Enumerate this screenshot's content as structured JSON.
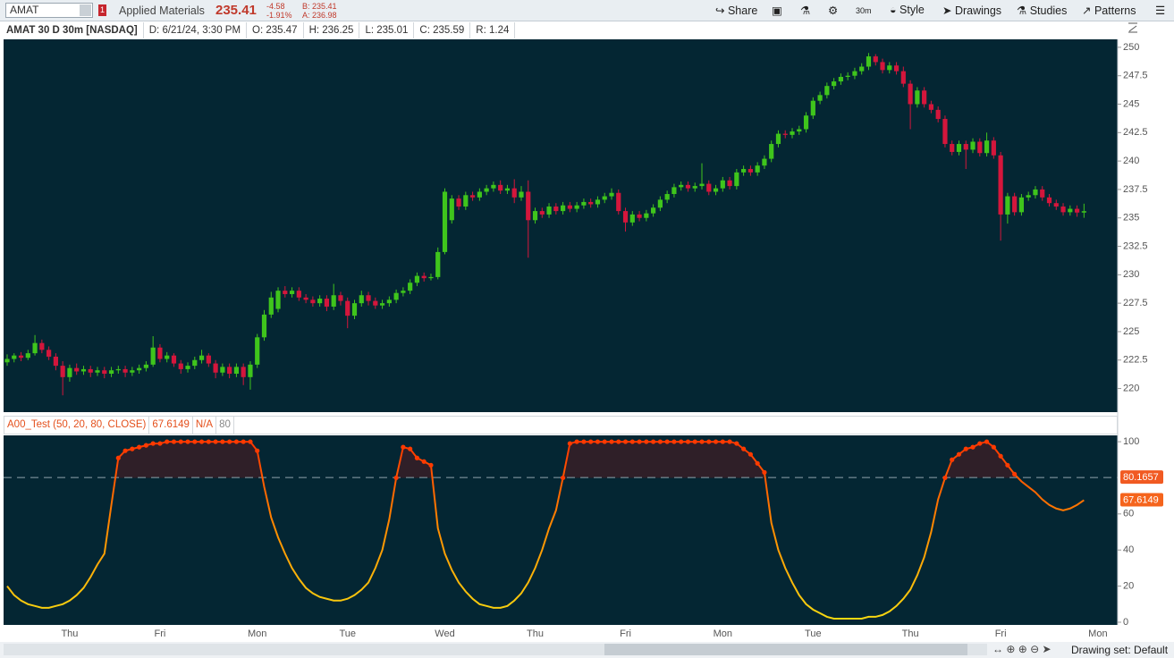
{
  "ui": {
    "symbol": "AMAT",
    "alert_count": "1",
    "company": "Applied Materials",
    "last": "235.41",
    "change": "-4.58",
    "change_pct": "-1.91%",
    "bid": "B: 235.41",
    "ask": "A: 236.98",
    "share": "Share",
    "timeframe": "30m",
    "style": "Style",
    "drawings": "Drawings",
    "studies": "Studies",
    "patterns": "Patterns",
    "info": [
      "AMAT 30 D 30m [NASDAQ]",
      "D: 6/21/24, 3:30 PM",
      "O: 235.47",
      "H: 236.25",
      "L: 235.01",
      "C: 235.59",
      "R: 1.24"
    ],
    "drawing_set": "Drawing set: Default"
  },
  "chart_data": [
    {
      "type": "candlestick",
      "colors": {
        "up": "#3fc51c",
        "down": "#d4163c"
      },
      "ylim": [
        218,
        250.7
      ],
      "yticks": [
        220,
        222.5,
        225,
        227.5,
        230,
        232.5,
        235,
        237.5,
        240,
        242.5,
        245,
        247.5,
        250
      ],
      "categories": [
        null,
        null,
        null,
        null,
        null,
        null,
        null,
        null,
        null,
        "Thu",
        null,
        null,
        null,
        null,
        null,
        null,
        null,
        null,
        null,
        null,
        null,
        null,
        "Fri",
        null,
        null,
        null,
        null,
        null,
        null,
        null,
        null,
        null,
        null,
        null,
        null,
        null,
        "Mon",
        null,
        null,
        null,
        null,
        null,
        null,
        null,
        null,
        null,
        null,
        null,
        null,
        "Tue",
        null,
        null,
        null,
        null,
        null,
        null,
        null,
        null,
        null,
        null,
        null,
        null,
        null,
        "Wed",
        null,
        null,
        null,
        null,
        null,
        null,
        null,
        null,
        null,
        null,
        null,
        null,
        "Thu",
        null,
        null,
        null,
        null,
        null,
        null,
        null,
        null,
        null,
        null,
        null,
        null,
        "Fri",
        null,
        null,
        null,
        null,
        null,
        null,
        null,
        null,
        null,
        null,
        null,
        null,
        null,
        "Mon",
        null,
        null,
        null,
        null,
        null,
        null,
        null,
        null,
        null,
        null,
        null,
        null,
        "Tue",
        null,
        null,
        null,
        null,
        null,
        null,
        null,
        null,
        null,
        null,
        null,
        null,
        null,
        "Thu",
        null,
        null,
        null,
        null,
        null,
        null,
        null,
        null,
        null,
        null,
        null,
        null,
        "Fri",
        null,
        null,
        null,
        null,
        null,
        null,
        null,
        null,
        null,
        null,
        null,
        null,
        null,
        "Mon"
      ],
      "candles": [
        [
          222.3,
          223.0,
          222.0,
          222.6
        ],
        [
          222.6,
          223.1,
          222.3,
          222.9
        ],
        [
          222.9,
          223.2,
          222.4,
          222.7
        ],
        [
          222.7,
          223.4,
          222.5,
          223.1
        ],
        [
          223.1,
          224.7,
          222.9,
          224.0
        ],
        [
          224.0,
          224.3,
          223.1,
          223.4
        ],
        [
          223.4,
          223.7,
          222.5,
          222.8
        ],
        [
          222.8,
          223.1,
          221.6,
          222.0
        ],
        [
          222.0,
          222.4,
          219.4,
          221.0
        ],
        [
          221.0,
          222.1,
          220.6,
          221.8
        ],
        [
          221.8,
          222.2,
          221.2,
          221.5
        ],
        [
          221.5,
          222.0,
          221.2,
          221.7
        ],
        [
          221.7,
          222.0,
          221.0,
          221.4
        ],
        [
          221.4,
          221.9,
          221.1,
          221.6
        ],
        [
          221.6,
          221.9,
          220.9,
          221.3
        ],
        [
          221.3,
          221.9,
          221.0,
          221.6
        ],
        [
          221.6,
          222.0,
          221.3,
          221.7
        ],
        [
          221.7,
          222.0,
          221.0,
          221.4
        ],
        [
          221.4,
          221.9,
          221.1,
          221.6
        ],
        [
          221.6,
          222.1,
          221.3,
          221.8
        ],
        [
          221.8,
          222.4,
          221.5,
          222.1
        ],
        [
          222.1,
          224.6,
          221.9,
          223.6
        ],
        [
          223.6,
          223.9,
          222.3,
          222.6
        ],
        [
          222.6,
          223.2,
          222.3,
          222.9
        ],
        [
          222.9,
          223.1,
          221.9,
          222.2
        ],
        [
          222.2,
          222.5,
          221.3,
          221.7
        ],
        [
          221.7,
          222.3,
          221.4,
          222.0
        ],
        [
          222.0,
          222.8,
          221.7,
          222.5
        ],
        [
          222.5,
          223.4,
          222.2,
          222.9
        ],
        [
          222.9,
          223.1,
          221.9,
          222.2
        ],
        [
          222.2,
          222.5,
          220.9,
          221.4
        ],
        [
          221.4,
          222.2,
          221.1,
          221.9
        ],
        [
          221.9,
          222.2,
          220.9,
          221.3
        ],
        [
          221.3,
          222.2,
          221.0,
          221.9
        ],
        [
          221.9,
          222.2,
          220.3,
          221.0
        ],
        [
          221.0,
          222.4,
          219.9,
          222.1
        ],
        [
          222.1,
          224.8,
          221.8,
          224.5
        ],
        [
          224.5,
          226.9,
          224.2,
          226.5
        ],
        [
          226.5,
          228.5,
          226.2,
          228.0
        ],
        [
          227.0,
          228.9,
          226.7,
          228.6
        ],
        [
          228.6,
          229.0,
          228.0,
          228.3
        ],
        [
          228.3,
          228.9,
          228.0,
          228.6
        ],
        [
          228.6,
          228.9,
          227.7,
          228.0
        ],
        [
          228.0,
          228.3,
          227.5,
          227.8
        ],
        [
          227.8,
          228.1,
          227.2,
          227.5
        ],
        [
          227.5,
          228.2,
          227.2,
          227.9
        ],
        [
          227.9,
          228.2,
          226.8,
          227.2
        ],
        [
          227.2,
          229.2,
          226.9,
          228.2
        ],
        [
          228.2,
          228.5,
          227.3,
          227.7
        ],
        [
          227.7,
          228.0,
          225.3,
          226.4
        ],
        [
          226.4,
          227.8,
          226.1,
          227.5
        ],
        [
          227.5,
          228.6,
          227.2,
          228.2
        ],
        [
          228.2,
          228.5,
          227.3,
          227.7
        ],
        [
          227.7,
          228.0,
          227.0,
          227.3
        ],
        [
          227.3,
          227.8,
          227.0,
          227.5
        ],
        [
          227.5,
          228.1,
          227.2,
          227.8
        ],
        [
          227.8,
          228.7,
          227.5,
          228.4
        ],
        [
          228.4,
          228.9,
          228.1,
          228.6
        ],
        [
          228.6,
          229.6,
          228.3,
          229.3
        ],
        [
          229.3,
          230.2,
          229.0,
          229.9
        ],
        [
          229.9,
          230.2,
          229.4,
          229.7
        ],
        [
          229.7,
          230.1,
          229.5,
          229.8
        ],
        [
          229.8,
          232.4,
          229.6,
          232.0
        ],
        [
          232.0,
          237.6,
          231.8,
          237.3
        ],
        [
          234.8,
          237.0,
          234.5,
          236.7
        ],
        [
          236.7,
          237.0,
          235.7,
          236.0
        ],
        [
          236.0,
          237.3,
          235.7,
          237.0
        ],
        [
          237.0,
          237.3,
          236.5,
          236.8
        ],
        [
          236.8,
          237.6,
          236.5,
          237.3
        ],
        [
          237.3,
          237.9,
          237.0,
          237.6
        ],
        [
          237.6,
          238.2,
          237.3,
          237.9
        ],
        [
          237.9,
          238.3,
          237.1,
          237.4
        ],
        [
          237.4,
          237.9,
          237.1,
          237.6
        ],
        [
          237.6,
          238.4,
          236.3,
          236.8
        ],
        [
          236.8,
          237.8,
          236.5,
          237.3
        ],
        [
          237.3,
          238.3,
          231.5,
          234.8
        ],
        [
          234.8,
          235.9,
          234.5,
          235.6
        ],
        [
          235.6,
          235.9,
          235.0,
          235.3
        ],
        [
          235.3,
          236.3,
          235.0,
          236.0
        ],
        [
          236.0,
          236.3,
          235.3,
          235.6
        ],
        [
          235.6,
          236.4,
          235.3,
          236.1
        ],
        [
          236.1,
          236.4,
          235.5,
          235.8
        ],
        [
          235.8,
          236.4,
          235.5,
          236.1
        ],
        [
          236.1,
          236.7,
          235.8,
          236.4
        ],
        [
          236.4,
          236.7,
          235.9,
          236.2
        ],
        [
          236.2,
          236.9,
          235.9,
          236.6
        ],
        [
          236.6,
          237.2,
          236.3,
          236.9
        ],
        [
          236.9,
          237.6,
          236.6,
          237.2
        ],
        [
          237.2,
          237.5,
          235.3,
          235.6
        ],
        [
          235.6,
          235.9,
          233.8,
          234.6
        ],
        [
          234.6,
          235.6,
          234.3,
          235.3
        ],
        [
          235.3,
          235.6,
          234.7,
          235.0
        ],
        [
          235.0,
          235.7,
          234.7,
          235.4
        ],
        [
          235.4,
          236.2,
          235.1,
          235.9
        ],
        [
          235.9,
          236.9,
          235.6,
          236.6
        ],
        [
          236.6,
          237.4,
          236.3,
          237.1
        ],
        [
          237.1,
          238.0,
          236.8,
          237.7
        ],
        [
          237.7,
          238.2,
          237.4,
          237.9
        ],
        [
          237.9,
          238.2,
          237.3,
          237.6
        ],
        [
          237.6,
          238.1,
          237.3,
          237.8
        ],
        [
          237.8,
          239.8,
          237.5,
          238.0
        ],
        [
          238.0,
          238.3,
          237.0,
          237.3
        ],
        [
          237.3,
          237.9,
          237.0,
          237.6
        ],
        [
          237.6,
          238.6,
          237.3,
          238.3
        ],
        [
          238.3,
          238.6,
          237.5,
          237.8
        ],
        [
          237.8,
          239.3,
          237.5,
          239.0
        ],
        [
          239.0,
          239.6,
          238.7,
          239.3
        ],
        [
          239.3,
          239.6,
          238.7,
          239.0
        ],
        [
          239.0,
          239.9,
          238.7,
          239.6
        ],
        [
          239.6,
          240.5,
          239.3,
          240.2
        ],
        [
          240.2,
          241.8,
          239.9,
          241.5
        ],
        [
          241.5,
          242.7,
          241.2,
          242.4
        ],
        [
          242.4,
          242.7,
          242.0,
          242.3
        ],
        [
          242.3,
          242.9,
          242.0,
          242.6
        ],
        [
          242.6,
          243.1,
          242.3,
          242.8
        ],
        [
          242.8,
          244.3,
          242.5,
          244.0
        ],
        [
          244.0,
          245.6,
          243.7,
          245.3
        ],
        [
          245.3,
          246.1,
          245.0,
          245.8
        ],
        [
          245.8,
          246.9,
          245.5,
          246.6
        ],
        [
          246.6,
          247.3,
          246.3,
          247.0
        ],
        [
          247.0,
          247.7,
          246.7,
          247.4
        ],
        [
          247.4,
          247.8,
          247.1,
          247.5
        ],
        [
          247.5,
          248.2,
          247.2,
          247.9
        ],
        [
          247.9,
          248.6,
          247.6,
          248.3
        ],
        [
          248.3,
          249.5,
          248.0,
          249.2
        ],
        [
          249.2,
          249.4,
          248.4,
          248.7
        ],
        [
          248.7,
          249.0,
          247.7,
          248.0
        ],
        [
          248.0,
          248.7,
          247.7,
          248.4
        ],
        [
          248.4,
          248.7,
          247.6,
          247.9
        ],
        [
          247.9,
          248.3,
          246.5,
          246.8
        ],
        [
          246.8,
          247.1,
          242.8,
          245.0
        ],
        [
          245.0,
          246.5,
          244.7,
          246.2
        ],
        [
          246.2,
          246.5,
          244.7,
          245.0
        ],
        [
          245.0,
          245.3,
          244.2,
          244.5
        ],
        [
          244.5,
          244.8,
          243.4,
          243.7
        ],
        [
          243.7,
          244.0,
          241.2,
          241.5
        ],
        [
          241.5,
          241.8,
          240.5,
          240.8
        ],
        [
          240.8,
          241.8,
          240.5,
          241.5
        ],
        [
          241.5,
          241.8,
          239.3,
          241.0
        ],
        [
          241.0,
          242.0,
          240.7,
          241.7
        ],
        [
          241.7,
          242.0,
          240.4,
          240.7
        ],
        [
          240.7,
          242.5,
          240.4,
          241.8
        ],
        [
          241.8,
          242.1,
          240.2,
          240.5
        ],
        [
          240.5,
          240.8,
          233.0,
          235.3
        ],
        [
          235.3,
          237.2,
          234.5,
          236.9
        ],
        [
          236.9,
          237.2,
          235.2,
          235.5
        ],
        [
          235.5,
          237.1,
          235.2,
          236.8
        ],
        [
          236.8,
          237.3,
          236.5,
          237.0
        ],
        [
          237.0,
          237.8,
          236.7,
          237.5
        ],
        [
          237.5,
          237.8,
          236.5,
          236.8
        ],
        [
          236.8,
          237.1,
          236.0,
          236.3
        ],
        [
          236.3,
          236.6,
          235.7,
          236.0
        ],
        [
          236.0,
          236.3,
          235.2,
          235.5
        ],
        [
          235.5,
          236.1,
          235.2,
          235.8
        ],
        [
          235.8,
          236.1,
          235.1,
          235.47
        ],
        [
          235.47,
          236.25,
          235.01,
          235.59
        ],
        null,
        null
      ]
    },
    {
      "type": "line",
      "title": "A00_Test (50, 20, 80, CLOSE)",
      "status": "N/A",
      "level": 80,
      "reference_line": 80.1657,
      "gradient": [
        "#f7dc12",
        "#ff8c00",
        "#ff2e00"
      ],
      "dot_color": "#ff3a00",
      "fill": "#2f1f28",
      "ylim": [
        -1,
        103.5
      ],
      "yticks": [
        0,
        20,
        40,
        60,
        100
      ],
      "values": [
        20,
        15,
        12,
        10,
        9,
        8,
        8,
        9,
        10,
        12,
        15,
        19,
        25,
        32,
        38,
        65,
        91,
        95,
        96,
        97,
        98,
        99,
        99,
        100,
        100,
        100,
        100,
        100,
        100,
        100,
        100,
        100,
        100,
        100,
        100,
        100,
        95,
        75,
        58,
        47,
        38,
        30,
        24,
        19,
        16,
        14,
        13,
        12,
        12,
        13,
        15,
        18,
        22,
        30,
        40,
        57,
        80,
        97,
        96,
        91,
        89,
        87,
        52,
        38,
        29,
        22,
        17,
        13,
        10,
        9,
        8,
        8,
        9,
        12,
        16,
        22,
        30,
        40,
        52,
        62,
        80,
        99,
        100,
        100,
        100,
        100,
        100,
        100,
        100,
        100,
        100,
        100,
        100,
        100,
        100,
        100,
        100,
        100,
        100,
        100,
        100,
        100,
        100,
        100,
        100,
        99,
        96,
        93,
        88,
        83,
        55,
        40,
        30,
        22,
        15,
        10,
        7,
        5,
        3,
        2,
        2,
        2,
        2,
        2,
        3,
        3,
        4,
        6,
        9,
        13,
        18,
        26,
        36,
        50,
        68,
        80,
        90,
        93,
        96,
        97,
        99,
        100,
        97,
        92,
        87,
        82,
        78,
        75,
        72,
        68,
        65,
        63,
        62,
        63,
        65,
        67.6149,
        null,
        null
      ]
    }
  ]
}
